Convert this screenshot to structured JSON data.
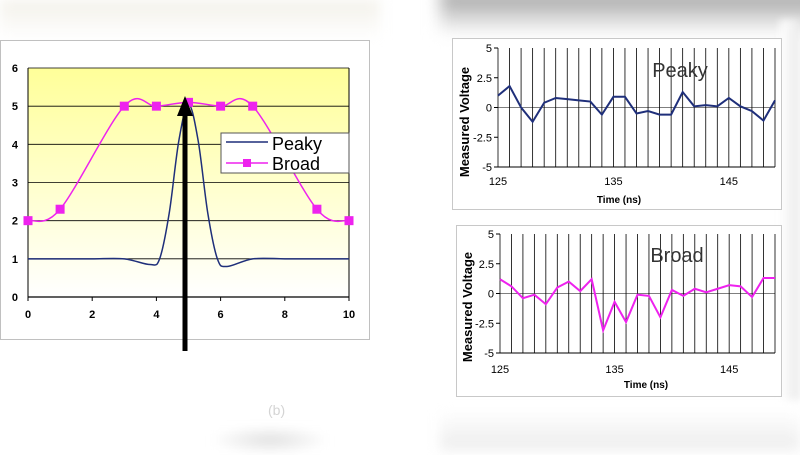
{
  "chart_data": [
    {
      "type": "line",
      "id": "main",
      "xlim": [
        0,
        10
      ],
      "ylim": [
        0,
        6
      ],
      "x_ticks": [
        "0",
        "2",
        "4",
        "6",
        "8",
        "10"
      ],
      "y_ticks": [
        "0",
        "1",
        "2",
        "3",
        "4",
        "5",
        "6"
      ],
      "legend_position": "right",
      "series": [
        {
          "name": "Peaky",
          "color": "#1f2f7a",
          "marker": "none",
          "points": [
            [
              0,
              1
            ],
            [
              1,
              1
            ],
            [
              2,
              1
            ],
            [
              3,
              1
            ],
            [
              3.8,
              0.85
            ],
            [
              4.1,
              1
            ],
            [
              4.4,
              2.2
            ],
            [
              4.7,
              4.1
            ],
            [
              5,
              5.05
            ],
            [
              5.3,
              4.1
            ],
            [
              5.6,
              2.2
            ],
            [
              5.9,
              1
            ],
            [
              6.2,
              0.8
            ],
            [
              7,
              1
            ],
            [
              8,
              1
            ],
            [
              9,
              1
            ],
            [
              10,
              1
            ]
          ]
        },
        {
          "name": "Broad",
          "color": "#ee22ee",
          "marker": "square",
          "points": [
            [
              0,
              2
            ],
            [
              1,
              2.3
            ],
            [
              3,
              5
            ],
            [
              4,
              5
            ],
            [
              5,
              5.1
            ],
            [
              6,
              5
            ],
            [
              7,
              5
            ],
            [
              9,
              2.3
            ],
            [
              10,
              2
            ]
          ]
        }
      ],
      "annotation": "upward arrow at x = 5"
    },
    {
      "type": "line",
      "id": "peaky-voltage",
      "title": "Peaky",
      "xlabel": "Time (ns)",
      "ylabel": "Measured Voltage",
      "xlim": [
        125,
        149
      ],
      "ylim": [
        -5,
        5
      ],
      "x_ticks": [
        "125",
        "135",
        "145"
      ],
      "y_ticks": [
        "5",
        "2.5",
        "0",
        "-2.5",
        "-5"
      ],
      "series": [
        {
          "name": "Peaky",
          "color": "#1f2f7a",
          "x": [
            125,
            126,
            127,
            128,
            129,
            130,
            131,
            132,
            133,
            134,
            135,
            136,
            137,
            138,
            139,
            140,
            141,
            142,
            143,
            144,
            145,
            146,
            147,
            148,
            149
          ],
          "values": [
            1.0,
            1.8,
            0.0,
            -1.2,
            0.4,
            0.8,
            0.7,
            0.6,
            0.5,
            -0.6,
            0.9,
            0.9,
            -0.5,
            -0.3,
            -0.6,
            -0.6,
            1.3,
            0.1,
            0.2,
            0.1,
            0.8,
            0.1,
            -0.3,
            -1.1,
            0.6
          ]
        }
      ]
    },
    {
      "type": "line",
      "id": "broad-voltage",
      "title": "Broad",
      "xlabel": "Time (ns)",
      "ylabel": "Measured Voltage",
      "xlim": [
        125,
        149
      ],
      "ylim": [
        -5,
        5
      ],
      "x_ticks": [
        "125",
        "135",
        "145"
      ],
      "y_ticks": [
        "5",
        "2.5",
        "0",
        "-2.5",
        "-5"
      ],
      "series": [
        {
          "name": "Broad",
          "color": "#ee22ee",
          "x": [
            125,
            126,
            127,
            128,
            129,
            130,
            131,
            132,
            133,
            134,
            135,
            136,
            137,
            138,
            139,
            140,
            141,
            142,
            143,
            144,
            145,
            146,
            147,
            148,
            149
          ],
          "values": [
            1.2,
            0.6,
            -0.4,
            -0.1,
            -0.9,
            0.5,
            1.0,
            0.2,
            1.2,
            -3.1,
            -0.7,
            -2.4,
            -0.1,
            -0.2,
            -2.0,
            0.3,
            -0.2,
            0.4,
            0.1,
            0.4,
            0.7,
            0.6,
            -0.3,
            1.3,
            1.3
          ]
        }
      ]
    }
  ],
  "footer_text": "(b)"
}
